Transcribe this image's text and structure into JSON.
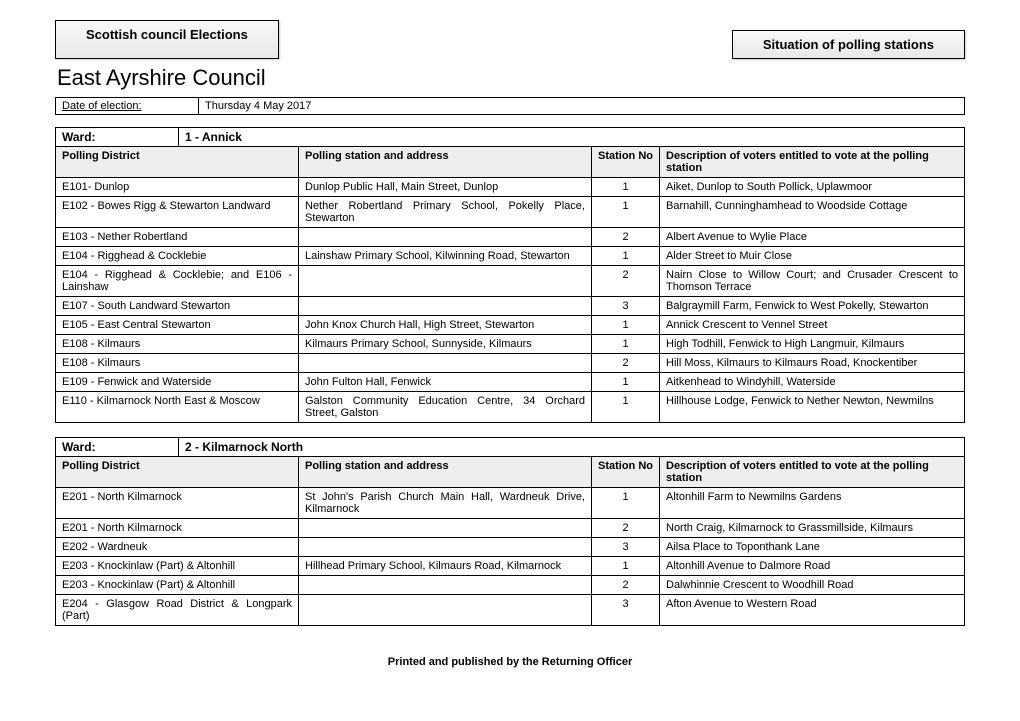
{
  "header": {
    "left_box": "Scottish council Elections",
    "right_box": "Situation of polling stations",
    "council": "East Ayrshire Council",
    "date_label": "Date of election:",
    "date_value": "Thursday 4 May 2017"
  },
  "columns": {
    "district": "Polling District",
    "station": "Polling station and address",
    "no": "Station No",
    "desc": "Description of voters entitled to vote at the polling station",
    "ward_label": "Ward:"
  },
  "wards": [
    {
      "name": "1 - Annick",
      "rows": [
        {
          "district": "E101- Dunlop",
          "station": "Dunlop Public Hall, Main Street, Dunlop",
          "no": "1",
          "desc": "Aiket, Dunlop to South Pollick, Uplawmoor"
        },
        {
          "district": "E102 - Bowes Rigg & Stewarton Landward",
          "station": "Nether Robertland Primary School, Pokelly Place, Stewarton",
          "no": "1",
          "desc": "Barnahill, Cunninghamhead to Woodside Cottage",
          "tall": true
        },
        {
          "district": "E103 - Nether Robertland",
          "station": "",
          "no": "2",
          "desc": "Albert Avenue to Wylie Place"
        },
        {
          "district": "E104 - Rigghead & Cocklebie",
          "station": "Lainshaw Primary School, Kilwinning Road, Stewarton",
          "no": "1",
          "desc": "Alder Street to Muir Close",
          "tall": true
        },
        {
          "district": "E104 - Rigghead & Cocklebie; and E106 - Lainshaw",
          "station": "",
          "no": "2",
          "desc": "Nairn Close to Willow Court;  and Crusader Crescent to Thomson Terrace",
          "tall": true
        },
        {
          "district": "E107 - South Landward Stewarton",
          "station": "",
          "no": "3",
          "desc": "Balgraymill Farm, Fenwick to West Pokelly, Stewarton",
          "tall": true
        },
        {
          "district": "E105 - East Central Stewarton",
          "station": "John Knox Church Hall, High Street, Stewarton",
          "no": "1",
          "desc": "Annick Crescent to Vennel Street"
        },
        {
          "district": "E108 - Kilmaurs",
          "station": "Kilmaurs Primary School, Sunnyside, Kilmaurs",
          "no": "1",
          "desc": "High Todhill, Fenwick to High Langmuir, Kilmaurs",
          "tall": true
        },
        {
          "district": "E108 - Kilmaurs",
          "station": "",
          "no": "2",
          "desc": "Hill Moss, Kilmaurs to Kilmaurs Road, Knockentiber"
        },
        {
          "district": "E109 - Fenwick and Waterside",
          "station": "John Fulton Hall, Fenwick",
          "no": "1",
          "desc": "Aitkenhead to Windyhill, Waterside"
        },
        {
          "district": "E110 - Kilmarnock North East & Moscow",
          "station": "Galston Community Education Centre, 34 Orchard Street, Galston",
          "no": "1",
          "desc": "Hillhouse Lodge, Fenwick to Nether Newton, Newmilns"
        }
      ]
    },
    {
      "name": "2 - Kilmarnock North",
      "rows": [
        {
          "district": "E201 - North Kilmarnock",
          "station": "St John's Parish Church Main Hall, Wardneuk Drive, Kilmarnock",
          "no": "1",
          "desc": "Altonhill Farm to Newmilns Gardens",
          "tall": true
        },
        {
          "district": "E201 - North Kilmarnock",
          "station": "",
          "no": "2",
          "desc": "North Craig, Kilmarnock to Grassmillside, Kilmaurs",
          "tall": true
        },
        {
          "district": "E202 - Wardneuk",
          "station": "",
          "no": "3",
          "desc": "Ailsa Place to Toponthank Lane"
        },
        {
          "district": "E203 - Knockinlaw (Part) & Altonhill",
          "station": "Hillhead Primary School, Kilmaurs Road, Kilmarnock",
          "no": "1",
          "desc": "Altonhill Avenue to Dalmore Road",
          "tall": true
        },
        {
          "district": "E203 - Knockinlaw (Part) & Altonhill",
          "station": "",
          "no": "2",
          "desc": "Dalwhinnie Crescent to Woodhill Road",
          "tall": true
        },
        {
          "district": "E204 - Glasgow Road District & Longpark (Part)",
          "station": "",
          "no": "3",
          "desc": "Afton Avenue to Western Road"
        }
      ]
    }
  ],
  "footer": "Printed and published by the Returning Officer"
}
